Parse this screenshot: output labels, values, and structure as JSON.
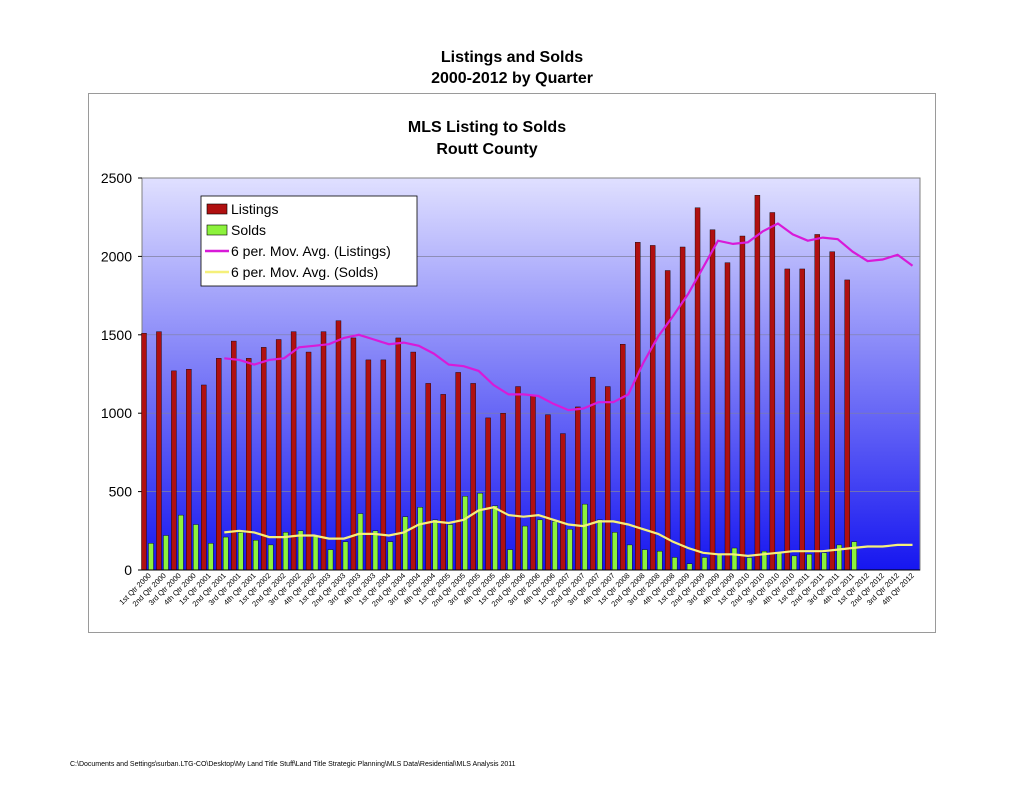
{
  "page": {
    "title_line1": "Listings and Solds",
    "title_line2": "2000-2012 by Quarter",
    "footer_path": "C:\\Documents and Settings\\surban.LTG-CO\\Desktop\\My Land Title Stuff\\Land Title Strategic Planning\\MLS Data\\Residential\\MLS Analysis 2011"
  },
  "colors": {
    "listings": "#b01010",
    "solds": "#8cf23c",
    "ma_listings": "#d81ad8",
    "ma_solds": "#f5f07a",
    "plot_top": "#e0e0ff",
    "plot_bottom": "#1616f0"
  },
  "chart_data": {
    "type": "bar",
    "title": "MLS Listing to Solds",
    "subtitle": "Routt County",
    "ylim": [
      0,
      2500
    ],
    "yticks": [
      0,
      500,
      1000,
      1500,
      2000,
      2500
    ],
    "grid": true,
    "legend_position": "top-left",
    "categories": [
      "1st Qtr 2000",
      "2nd Qtr 2000",
      "3rd Qtr 2000",
      "4th Qtr 2000",
      "1st Qtr 2001",
      "2nd Qtr 2001",
      "3rd Qtr 2001",
      "4th Qtr 2001",
      "1st Qtr 2002",
      "2nd Qtr 2002",
      "3rd Qtr 2002",
      "4th Qtr 2002",
      "1st Qtr 2003",
      "2nd Qtr 2003",
      "3rd Qtr 2003",
      "4th Qtr 2003",
      "1st Qtr 2004",
      "2nd Qtr 2004",
      "3rd Qtr 2004",
      "4th Qtr 2004",
      "1st Qtr 2005",
      "2nd Qtr 2005",
      "3rd Qtr 2005",
      "4th Qtr 2005",
      "1st Qtr 2006",
      "2nd Qtr 2006",
      "3rd Qtr 2006",
      "4th Qtr 2006",
      "1st Qtr 2007",
      "2nd Qtr 2007",
      "3rd Qtr 2007",
      "4th Qtr 2007",
      "1st Qtr 2008",
      "2nd Qtr 2008",
      "3rd Qtr 2008",
      "4th Qtr 2008",
      "1st Qtr 2009",
      "2nd Qtr 2009",
      "3rd Qtr 2009",
      "4th Qtr 2009",
      "1st Qtr 2010",
      "2nd Qtr 2010",
      "3rd Qtr 2010",
      "4th Qtr 2010",
      "1st Qtr 2011",
      "2nd Qtr 2011",
      "3rd Qtr 2011",
      "4th Qtr 2011",
      "1st Qtr 2012",
      "2nd Qtr 2012",
      "3rd Qtr 2012",
      "4th Qtr 2012"
    ],
    "series": [
      {
        "name": "Listings",
        "type": "bar",
        "values": [
          1510,
          1520,
          1270,
          1280,
          1180,
          1350,
          1460,
          1350,
          1420,
          1470,
          1520,
          1390,
          1520,
          1590,
          1480,
          1340,
          1340,
          1480,
          1390,
          1190,
          1120,
          1260,
          1190,
          970,
          1000,
          1170,
          1110,
          990,
          870,
          1040,
          1230,
          1170,
          1440,
          2090,
          2070,
          1910,
          2060,
          2310,
          2170,
          1960,
          2130,
          2390,
          2280,
          1920,
          1920,
          2140,
          2030,
          1850,
          null,
          null,
          null,
          null
        ]
      },
      {
        "name": "Solds",
        "type": "bar",
        "values": [
          170,
          220,
          350,
          290,
          170,
          210,
          240,
          190,
          160,
          240,
          250,
          220,
          130,
          180,
          360,
          250,
          180,
          340,
          400,
          320,
          290,
          470,
          490,
          410,
          130,
          280,
          320,
          310,
          260,
          420,
          320,
          240,
          160,
          130,
          120,
          80,
          40,
          80,
          100,
          140,
          80,
          120,
          110,
          90,
          100,
          110,
          160,
          180,
          null,
          null,
          null,
          null
        ]
      },
      {
        "name": "6 per. Mov. Avg. (Listings)",
        "type": "line",
        "values": [
          null,
          null,
          null,
          null,
          null,
          1350,
          1340,
          1310,
          1340,
          1350,
          1420,
          1430,
          1440,
          1480,
          1500,
          1470,
          1440,
          1450,
          1430,
          1380,
          1310,
          1300,
          1270,
          1180,
          1120,
          1120,
          1110,
          1060,
          1020,
          1030,
          1070,
          1070,
          1120,
          1320,
          1490,
          1620,
          1760,
          1930,
          2100,
          2080,
          2090,
          2160,
          2210,
          2140,
          2100,
          2120,
          2110,
          2030,
          1970,
          1980,
          2010,
          1940
        ]
      },
      {
        "name": "6 per. Mov. Avg. (Solds)",
        "type": "line",
        "values": [
          null,
          null,
          null,
          null,
          null,
          240,
          250,
          240,
          210,
          210,
          220,
          220,
          200,
          200,
          230,
          230,
          220,
          240,
          290,
          310,
          300,
          320,
          380,
          400,
          350,
          340,
          350,
          320,
          290,
          280,
          310,
          310,
          290,
          260,
          230,
          180,
          140,
          110,
          100,
          100,
          90,
          100,
          110,
          120,
          120,
          120,
          130,
          140,
          150,
          150,
          160,
          160
        ]
      }
    ]
  }
}
